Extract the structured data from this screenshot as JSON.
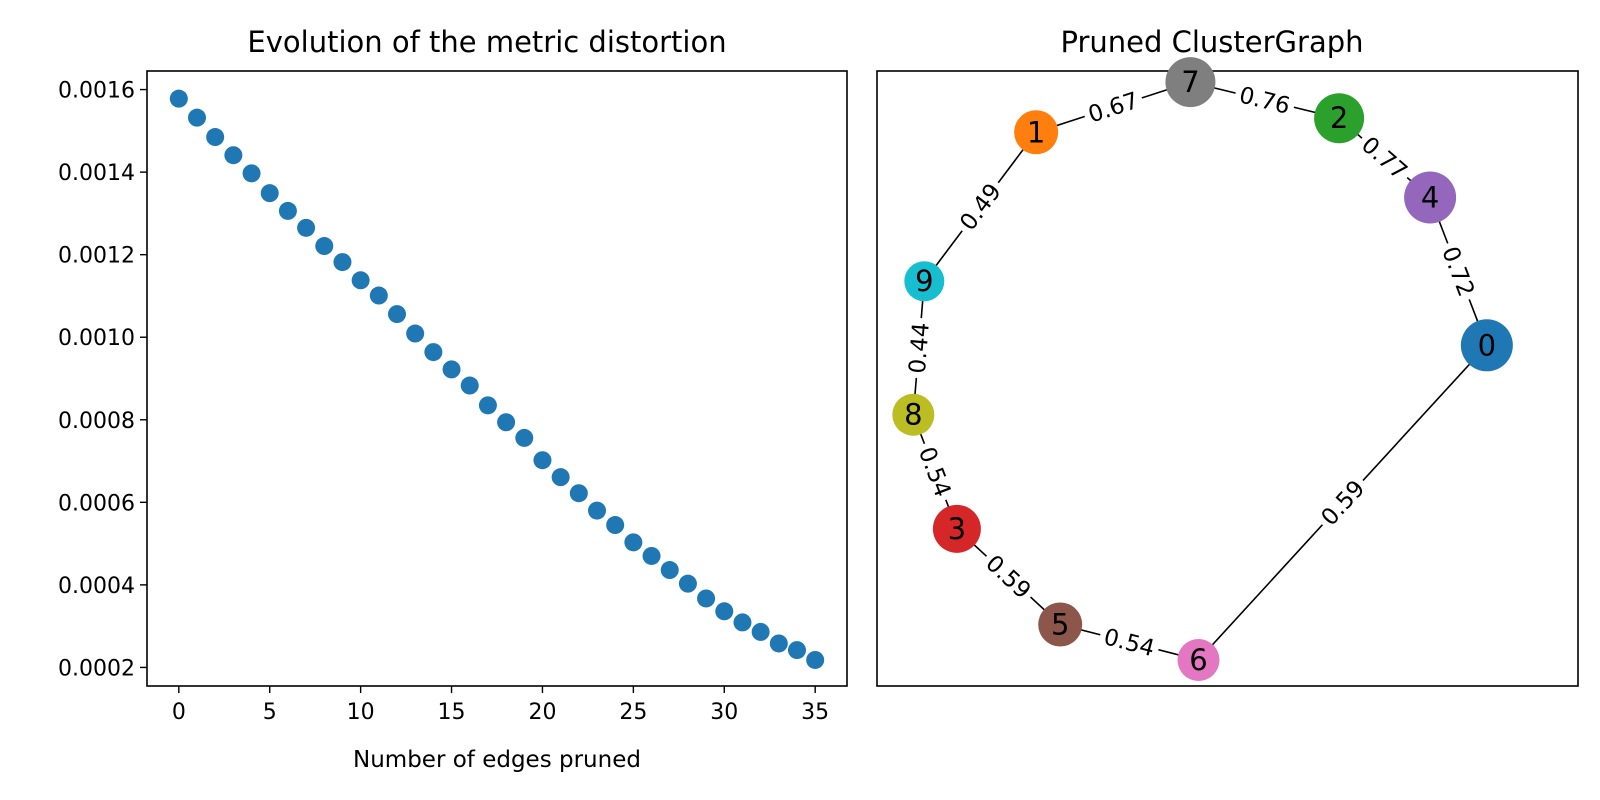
{
  "chart_data": [
    {
      "type": "scatter",
      "title": "Evolution of the metric distortion",
      "xlabel": "Number of edges pruned",
      "ylabel": "",
      "xlim": [
        -1.75,
        36.75
      ],
      "ylim": [
        0.000155,
        0.001645
      ],
      "xticks": [
        0,
        5,
        10,
        15,
        20,
        25,
        30,
        35
      ],
      "xtick_labels": [
        "0",
        "5",
        "10",
        "15",
        "20",
        "25",
        "30",
        "35"
      ],
      "yticks": [
        0.0002,
        0.0004,
        0.0006,
        0.0008,
        0.001,
        0.0012,
        0.0014,
        0.0016
      ],
      "ytick_labels": [
        "0.0002",
        "0.0004",
        "0.0006",
        "0.0008",
        "0.0010",
        "0.0012",
        "0.0014",
        "0.0016"
      ],
      "grid": false,
      "marker_color": "#1f77b4",
      "x": [
        0,
        1,
        2,
        3,
        4,
        5,
        6,
        7,
        8,
        9,
        10,
        11,
        12,
        13,
        14,
        15,
        16,
        17,
        18,
        19,
        20,
        21,
        22,
        23,
        24,
        25,
        26,
        27,
        28,
        29,
        30,
        31,
        32,
        33,
        34,
        35
      ],
      "y": [
        0.001578,
        0.001532,
        0.001485,
        0.001441,
        0.001397,
        0.001349,
        0.001306,
        0.001265,
        0.001221,
        0.001182,
        0.001138,
        0.001101,
        0.001056,
        0.001009,
        0.000964,
        0.000922,
        0.000883,
        0.000835,
        0.000794,
        0.000756,
        0.000702,
        0.000661,
        0.000622,
        0.00058,
        0.000545,
        0.000503,
        0.00047,
        0.000436,
        0.000403,
        0.000367,
        0.000336,
        0.000309,
        0.000286,
        0.000258,
        0.000242,
        0.000218
      ]
    },
    {
      "type": "graph",
      "title": "Pruned ClusterGraph",
      "nodes": [
        {
          "id": "0",
          "color": "#1f77b4"
        },
        {
          "id": "1",
          "color": "#ff7f0e"
        },
        {
          "id": "2",
          "color": "#2ca02c"
        },
        {
          "id": "3",
          "color": "#d62728"
        },
        {
          "id": "4",
          "color": "#9467bd"
        },
        {
          "id": "5",
          "color": "#8c564b"
        },
        {
          "id": "6",
          "color": "#e377c2"
        },
        {
          "id": "7",
          "color": "#7f7f7f"
        },
        {
          "id": "8",
          "color": "#bcbd22"
        },
        {
          "id": "9",
          "color": "#17becf"
        }
      ],
      "edges": [
        {
          "source": "5",
          "target": "6",
          "label": "0.54"
        },
        {
          "source": "6",
          "target": "0",
          "label": "0.59"
        },
        {
          "source": "0",
          "target": "4",
          "label": "0.72"
        },
        {
          "source": "4",
          "target": "2",
          "label": "0.77"
        },
        {
          "source": "2",
          "target": "7",
          "label": "0.76"
        },
        {
          "source": "7",
          "target": "1",
          "label": "0.67"
        },
        {
          "source": "1",
          "target": "9",
          "label": "0.49"
        },
        {
          "source": "9",
          "target": "8",
          "label": "0.44"
        },
        {
          "source": "8",
          "target": "3",
          "label": "0.54"
        },
        {
          "source": "3",
          "target": "5",
          "label": "0.59"
        }
      ]
    }
  ]
}
